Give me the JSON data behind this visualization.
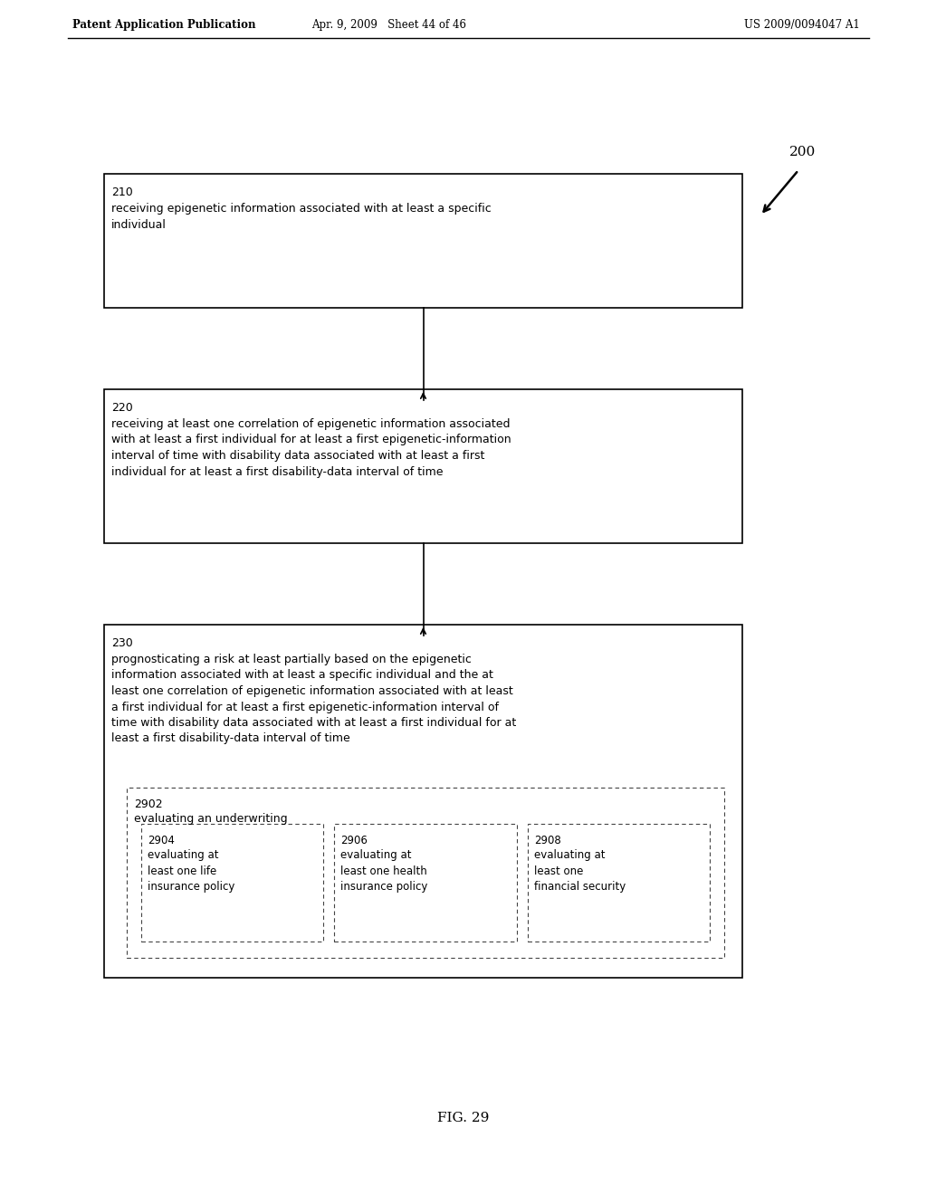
{
  "header_left": "Patent Application Publication",
  "header_mid": "Apr. 9, 2009   Sheet 44 of 46",
  "header_right": "US 2009/0094047 A1",
  "fig_label": "FIG. 29",
  "diagram_label": "200",
  "box1_id": "210",
  "box1_text": "receiving epigenetic information associated with at least a specific\nindividual",
  "box2_id": "220",
  "box2_text": "receiving at least one correlation of epigenetic information associated\nwith at least a first individual for at least a first epigenetic-information\ninterval of time with disability data associated with at least a first\nindividual for at least a first disability-data interval of time",
  "box3_id": "230",
  "box3_text": "prognosticating a risk at least partially based on the epigenetic\ninformation associated with at least a specific individual and the at\nleast one correlation of epigenetic information associated with at least\na first individual for at least a first epigenetic-information interval of\ntime with disability data associated with at least a first individual for at\nleast a first disability-data interval of time",
  "inner_box_id": "2902",
  "inner_box_text": "evaluating an underwriting",
  "sub_box1_id": "2904",
  "sub_box1_text": "evaluating at\nleast one life\ninsurance policy",
  "sub_box2_id": "2906",
  "sub_box2_text": "evaluating at\nleast one health\ninsurance policy",
  "sub_box3_id": "2908",
  "sub_box3_text": "evaluating at\nleast one\nfinancial security",
  "bg_color": "#ffffff",
  "box_edge_color": "#000000",
  "text_color": "#000000",
  "font_size_header": 8.5,
  "font_size_id": 9,
  "font_size_body": 9,
  "font_size_fig": 11,
  "font_size_sub": 8.5
}
